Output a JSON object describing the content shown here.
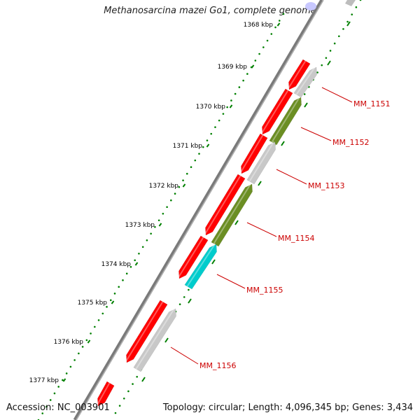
{
  "title": "Methanosarcina mazei Go1, complete genome",
  "accession_text": "Accession: NC_003901",
  "summary_text": "Topology: circular; Length: 4,096,345 bp; Genes: 3,434",
  "colors": {
    "backbone": "#808080",
    "tick_dots": "#008000",
    "label_red": "#cc0000",
    "forward_gene": "#ff0000",
    "reverse_gray": "#c8c8c8",
    "reverse_olive": "#6b8e23",
    "reverse_cyan": "#00cccc"
  },
  "tick_labels": [
    "1368 kbp",
    "1369 kbp",
    "1370 kbp",
    "1371 kbp",
    "1372 kbp",
    "1373 kbp",
    "1374 kbp",
    "1375 kbp",
    "1376 kbp",
    "1377 kbp"
  ],
  "gene_labels": [
    "MM_1151",
    "MM_1152",
    "MM_1153",
    "MM_1154",
    "MM_1155",
    "MM_1156"
  ]
}
